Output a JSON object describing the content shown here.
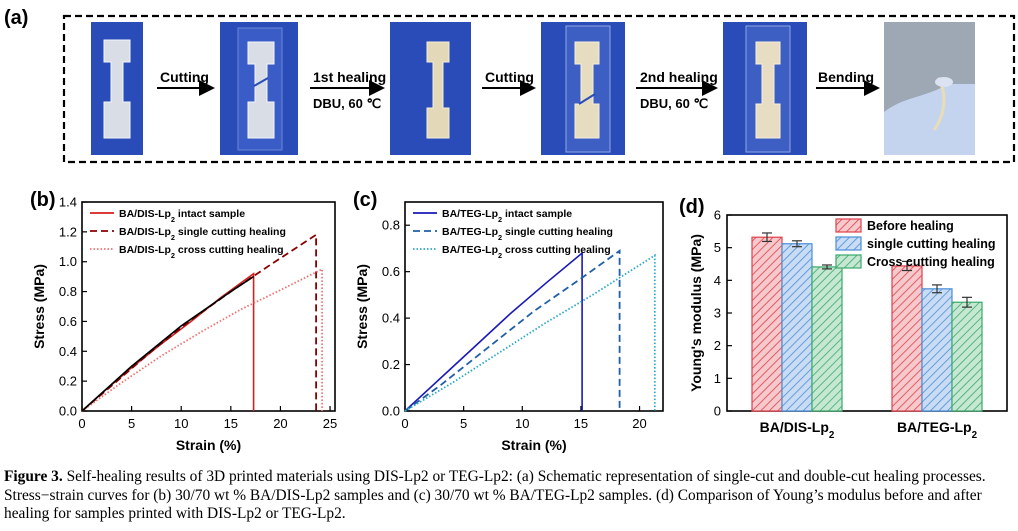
{
  "panel_a": {
    "label": "(a)",
    "steps": [
      {
        "text": "Cutting",
        "sub": ""
      },
      {
        "text": "1st healing",
        "sub": "DBU, 60 ℃"
      },
      {
        "text": "Cutting",
        "sub": ""
      },
      {
        "text": "2nd healing",
        "sub": "DBU, 60 ℃"
      },
      {
        "text": "Bending",
        "sub": ""
      }
    ],
    "colors": {
      "photo_bg": "#2a4cb8",
      "frame": "#000000"
    }
  },
  "chart_data": [
    {
      "id": "b",
      "panel_label": "(b)",
      "type": "line",
      "xlabel": "Strain (%)",
      "ylabel": "Stress (MPa)",
      "xlim": [
        0,
        25.5
      ],
      "ylim": [
        0,
        1.4
      ],
      "xticks": [
        0,
        5,
        10,
        15,
        20,
        25
      ],
      "yticks": [
        0.0,
        0.2,
        0.4,
        0.6,
        0.8,
        1.0,
        1.2,
        1.4
      ],
      "ytick_labels": [
        "0.0",
        "0.2",
        "0.4",
        "0.6",
        "0.8",
        "1.0",
        "1.2",
        "1.4"
      ],
      "legend": "top-left",
      "series": [
        {
          "name": "BA/DIS-Lp2 intact sample",
          "style": "solid",
          "color": "#d42020",
          "x": [
            0,
            2,
            5,
            8,
            11,
            14,
            17.3,
            17.3
          ],
          "y": [
            0,
            0.12,
            0.29,
            0.45,
            0.6,
            0.76,
            0.92,
            0
          ]
        },
        {
          "name": "BA/DIS-Lp2 single cutting healing",
          "style": "dashed",
          "color": "#8b0000",
          "x": [
            0,
            3,
            7,
            11,
            15,
            19,
            23.6,
            23.6
          ],
          "y": [
            0,
            0.17,
            0.4,
            0.61,
            0.8,
            0.98,
            1.18,
            0
          ]
        },
        {
          "name": "BA/DIS-Lp2 cross cutting healing",
          "style": "dotted",
          "color": "#f07070",
          "x": [
            0,
            4,
            8,
            12,
            16,
            20,
            24.2,
            24.2
          ],
          "y": [
            0,
            0.19,
            0.37,
            0.53,
            0.68,
            0.81,
            0.95,
            0
          ]
        }
      ],
      "extra_series": {
        "name": "",
        "style": "solid",
        "color": "#000000",
        "x": [
          0,
          5,
          10,
          15,
          17.3
        ],
        "y": [
          0,
          0.3,
          0.57,
          0.8,
          0.9
        ]
      }
    },
    {
      "id": "c",
      "panel_label": "(c)",
      "type": "line",
      "xlabel": "Strain (%)",
      "ylabel": "Stress (MPa)",
      "xlim": [
        0,
        22
      ],
      "ylim": [
        0,
        0.9
      ],
      "xticks": [
        0,
        5,
        10,
        15,
        20
      ],
      "yticks": [
        0.0,
        0.2,
        0.4,
        0.6,
        0.8
      ],
      "ytick_labels": [
        "0.0",
        "0.2",
        "0.4",
        "0.6",
        "0.8"
      ],
      "legend": "top-left",
      "series": [
        {
          "name": "BA/TEG-Lp2 intact sample",
          "style": "solid",
          "color": "#1a1ab8",
          "x": [
            0,
            3,
            6,
            9,
            12,
            15.1,
            15.1
          ],
          "y": [
            0,
            0.14,
            0.28,
            0.42,
            0.55,
            0.68,
            0
          ]
        },
        {
          "name": "BA/TEG-Lp2 single cutting healing",
          "style": "dashed",
          "color": "#1f5fa8",
          "x": [
            0,
            3,
            7,
            11,
            15,
            18.3,
            18.3
          ],
          "y": [
            0,
            0.11,
            0.27,
            0.43,
            0.57,
            0.69,
            0
          ]
        },
        {
          "name": "BA/TEG-Lp2 cross cutting healing",
          "style": "dotted",
          "color": "#2aa8c8",
          "x": [
            0,
            4,
            8,
            12,
            16,
            21.3,
            21.3
          ],
          "y": [
            0,
            0.12,
            0.25,
            0.38,
            0.5,
            0.67,
            0
          ]
        }
      ]
    },
    {
      "id": "d",
      "panel_label": "(d)",
      "type": "bar",
      "ylabel": "Young's modulus (MPa)",
      "ylim": [
        0,
        6
      ],
      "yticks": [
        0,
        1,
        2,
        3,
        4,
        5,
        6
      ],
      "categories": [
        "BA/DIS-Lp2",
        "BA/TEG-Lp2"
      ],
      "legend": "top-right",
      "series": [
        {
          "name": "Before healing",
          "color": "#e0404a",
          "values": [
            5.32,
            4.44
          ],
          "errors": [
            0.13,
            0.14
          ]
        },
        {
          "name": "single cutting healing",
          "color": "#4a8ed8",
          "values": [
            5.12,
            3.74
          ],
          "errors": [
            0.09,
            0.12
          ]
        },
        {
          "name": "Cross cutting healing",
          "color": "#3aa86a",
          "values": [
            4.41,
            3.33
          ],
          "errors": [
            0.06,
            0.15
          ]
        }
      ]
    }
  ],
  "caption": {
    "figure": "Figure 3.",
    "text": " Self-healing results of 3D printed materials using DIS-Lp2 or TEG-Lp2: (a) Schematic representation of single-cut and double-cut healing processes. Stress−strain curves for (b) 30/70 wt % BA/DIS-Lp2 samples and (c) 30/70 wt % BA/TEG-Lp2 samples. (d) Comparison of Young’s modulus before and after healing for samples printed with DIS-Lp2 or TEG-Lp2."
  }
}
